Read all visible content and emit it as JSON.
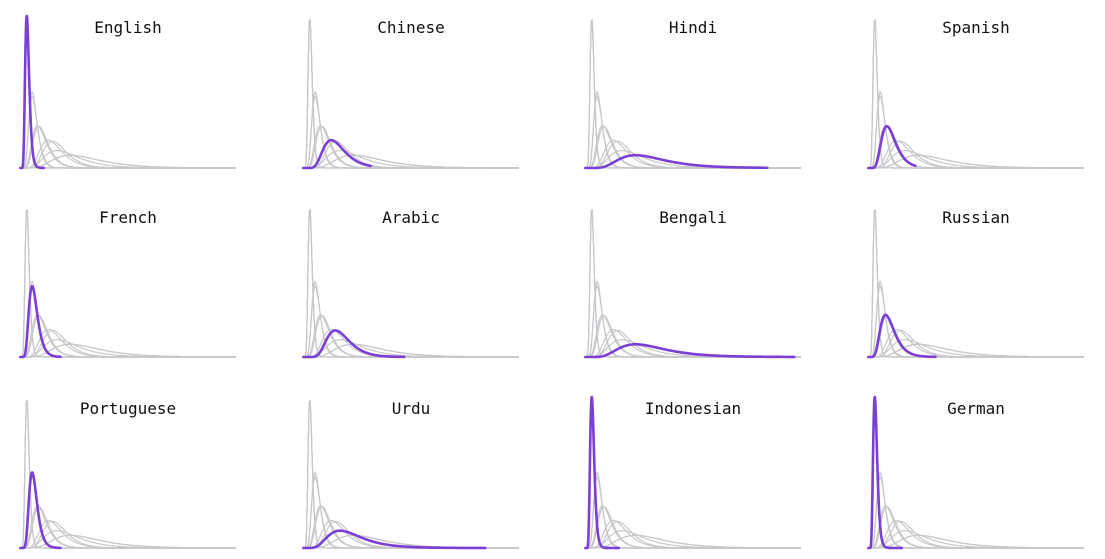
{
  "chart_data": {
    "type": "line",
    "layout": {
      "rows": 3,
      "cols": 4
    },
    "grid": false,
    "axes_visible": "baseline only",
    "colors": {
      "highlight": "#7a3fd4",
      "background_curves": "#c8c8cc",
      "baseline": "#c8c8cc"
    },
    "panels": [
      {
        "title": "English",
        "highlight": {
          "mode": 1.0,
          "sigma": 0.3,
          "xmax": 3.5
        }
      },
      {
        "title": "Chinese",
        "highlight": {
          "mode": 4.2,
          "sigma": 0.38,
          "xmax": 10
        }
      },
      {
        "title": "Hindi",
        "highlight": {
          "mode": 7.5,
          "sigma": 0.45,
          "xmax": 27
        }
      },
      {
        "title": "Spanish",
        "highlight": {
          "mode": 2.8,
          "sigma": 0.38,
          "xmax": 7
        }
      },
      {
        "title": "French",
        "highlight": {
          "mode": 1.8,
          "sigma": 0.35,
          "xmax": 6
        }
      },
      {
        "title": "Arabic",
        "highlight": {
          "mode": 4.8,
          "sigma": 0.35,
          "xmax": 15
        }
      },
      {
        "title": "Bengali",
        "highlight": {
          "mode": 7.5,
          "sigma": 0.45,
          "xmax": 31
        }
      },
      {
        "title": "Russian",
        "highlight": {
          "mode": 2.6,
          "sigma": 0.4,
          "xmax": 10
        }
      },
      {
        "title": "Portuguese",
        "highlight": {
          "mode": 1.8,
          "sigma": 0.33,
          "xmax": 6
        }
      },
      {
        "title": "Urdu",
        "highlight": {
          "mode": 5.5,
          "sigma": 0.45,
          "xmax": 27
        }
      },
      {
        "title": "Indonesian",
        "highlight": {
          "mode": 1.0,
          "sigma": 0.3,
          "xmax": 5
        }
      },
      {
        "title": "German",
        "highlight": {
          "mode": 1.0,
          "sigma": 0.3,
          "xmax": 5
        }
      }
    ],
    "background_series": [
      {
        "mode": 1.0,
        "sigma": 0.3
      },
      {
        "mode": 4.2,
        "sigma": 0.38
      },
      {
        "mode": 7.5,
        "sigma": 0.45
      },
      {
        "mode": 2.8,
        "sigma": 0.38
      },
      {
        "mode": 1.8,
        "sigma": 0.35
      },
      {
        "mode": 4.8,
        "sigma": 0.35
      },
      {
        "mode": 7.5,
        "sigma": 0.45
      },
      {
        "mode": 2.6,
        "sigma": 0.4
      },
      {
        "mode": 1.8,
        "sigma": 0.33
      },
      {
        "mode": 5.5,
        "sigma": 0.45
      },
      {
        "mode": 1.0,
        "sigma": 0.3
      },
      {
        "mode": 1.0,
        "sigma": 0.3
      }
    ],
    "xlim": [
      0,
      32
    ]
  }
}
